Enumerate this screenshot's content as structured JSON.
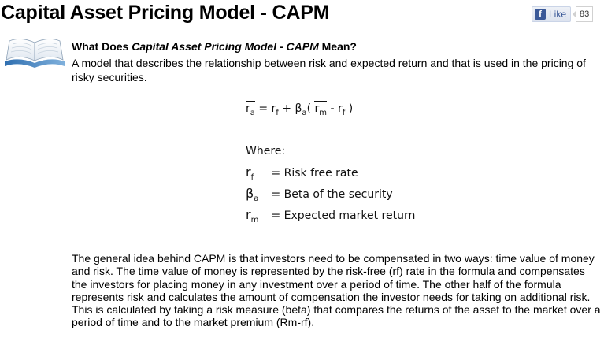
{
  "header": {
    "title": "Capital Asset Pricing Model - CAPM",
    "like_icon": "f",
    "like_label": "Like",
    "like_count": "83"
  },
  "definition": {
    "question_prefix": "What Does ",
    "question_term": "Capital Asset Pricing Model - CAPM",
    "question_suffix": " Mean?",
    "text": "A model that describes the relationship between risk and expected return and that is used in the pricing of risky securities."
  },
  "formula": {
    "r": "r",
    "sub_a": "a",
    "equals": " = ",
    "rf_r": "r",
    "sub_f": "f",
    "plus": " + ",
    "beta": "β",
    "beta_sub": "a",
    "open_paren": "(  ",
    "rm_r": "r",
    "sub_m": "m",
    "minus": " - ",
    "rf2_r": "r",
    "sub_f2": "f",
    "close_paren": " )"
  },
  "where": {
    "heading": "Where:",
    "items": [
      {
        "sym": "r",
        "sub": "f",
        "desc": "= Risk free rate"
      },
      {
        "sym": "β",
        "sub": "a",
        "desc": "= Beta of the security"
      },
      {
        "sym": "r",
        "sub": "m",
        "desc": "= Expected market return"
      }
    ]
  },
  "body": {
    "text": "The general idea behind CAPM is that investors need to be compensated in two ways: time value of money and risk. The time value of money is represented by the risk-free (rf) rate in the formula and compensates the investors for placing money in any investment over a period of time. The other half of the formula represents risk and calculates the amount of compensation the investor needs for taking on additional risk. This is calculated by taking a risk measure (beta) that compares the returns of the asset to the market over a period of time and to the market premium (Rm-rf)."
  }
}
